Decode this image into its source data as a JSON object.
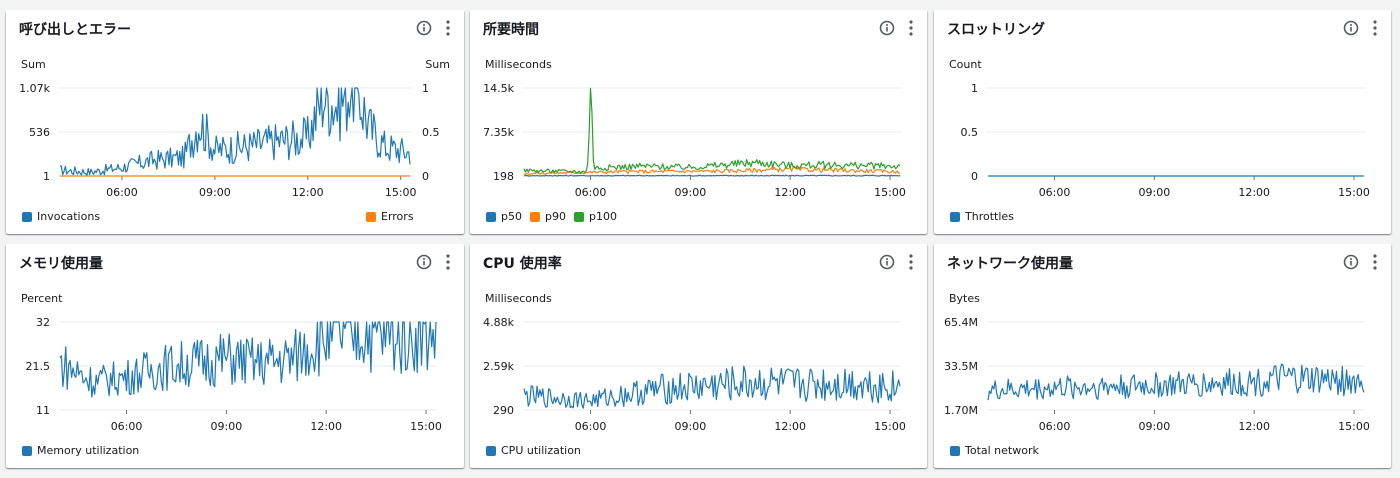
{
  "colors": {
    "blue": "#1f77b4",
    "orange": "#ff7f0e",
    "green": "#2ca02c",
    "axis": "#687078",
    "grid": "#e9ebed"
  },
  "icons": {
    "info": "info-circle-icon",
    "more": "vertical-ellipsis-icon"
  },
  "panels": [
    {
      "title": "呼び出しとエラー",
      "legend": [
        "Invocations",
        "Errors"
      ]
    },
    {
      "title": "所要時間",
      "legend": [
        "p50",
        "p90",
        "p100"
      ]
    },
    {
      "title": "スロットリング",
      "legend": [
        "Throttles"
      ]
    },
    {
      "title": "メモリ使用量",
      "legend": [
        "Memory utilization"
      ]
    },
    {
      "title": "CPU 使用率",
      "legend": [
        "CPU utilization"
      ]
    },
    {
      "title": "ネットワーク使用量",
      "legend": [
        "Total network"
      ]
    }
  ],
  "chart_data": [
    {
      "type": "line",
      "title": "呼び出しとエラー",
      "ylabel": "Sum",
      "y2label": "Sum",
      "yticks": [
        "1.07k",
        "536",
        "1"
      ],
      "y2ticks": [
        "1",
        "0.5",
        "0"
      ],
      "ylim": [
        1,
        1070
      ],
      "y2lim": [
        0,
        1
      ],
      "xticks": [
        "06:00",
        "09:00",
        "12:00",
        "15:00"
      ],
      "xrange_hours": [
        4.0,
        15.3
      ],
      "series": [
        {
          "name": "Invocations",
          "axis": "left",
          "color": "#1f77b4",
          "anchors": [
            [
              4.0,
              60
            ],
            [
              5.0,
              40
            ],
            [
              6.0,
              90
            ],
            [
              7.0,
              170
            ],
            [
              8.0,
              200
            ],
            [
              8.5,
              600
            ],
            [
              9.0,
              280
            ],
            [
              10.0,
              320
            ],
            [
              11.0,
              380
            ],
            [
              12.0,
              420
            ],
            [
              12.5,
              900
            ],
            [
              13.0,
              760
            ],
            [
              13.5,
              1070
            ],
            [
              14.0,
              520
            ],
            [
              14.5,
              320
            ],
            [
              15.3,
              250
            ]
          ]
        },
        {
          "name": "Errors",
          "axis": "right",
          "color": "#ff7f0e",
          "anchors": [
            [
              4.0,
              0
            ],
            [
              15.3,
              0
            ]
          ]
        }
      ]
    },
    {
      "type": "line",
      "title": "所要時間",
      "ylabel": "Milliseconds",
      "yticks": [
        "14.5k",
        "7.35k",
        "198"
      ],
      "ylim": [
        198,
        14500
      ],
      "xticks": [
        "06:00",
        "09:00",
        "12:00",
        "15:00"
      ],
      "xrange_hours": [
        4.0,
        15.3
      ],
      "series": [
        {
          "name": "p50",
          "color": "#1f77b4",
          "anchors": [
            [
              4.0,
              250
            ],
            [
              15.3,
              260
            ]
          ]
        },
        {
          "name": "p90",
          "color": "#ff7f0e",
          "anchors": [
            [
              4.0,
              600
            ],
            [
              7.0,
              900
            ],
            [
              10.0,
              1000
            ],
            [
              12.0,
              1300
            ],
            [
              15.3,
              900
            ]
          ]
        },
        {
          "name": "p100",
          "color": "#2ca02c",
          "anchors": [
            [
              4.0,
              1100
            ],
            [
              5.9,
              900
            ],
            [
              6.0,
              14500
            ],
            [
              6.1,
              1500
            ],
            [
              7.5,
              1800
            ],
            [
              9.0,
              1600
            ],
            [
              11.0,
              2400
            ],
            [
              12.0,
              1900
            ],
            [
              13.0,
              2000
            ],
            [
              15.3,
              1800
            ]
          ]
        }
      ]
    },
    {
      "type": "line",
      "title": "スロットリング",
      "ylabel": "Count",
      "yticks": [
        "1",
        "0.5",
        "0"
      ],
      "ylim": [
        0,
        1
      ],
      "xticks": [
        "06:00",
        "09:00",
        "12:00",
        "15:00"
      ],
      "xrange_hours": [
        4.0,
        15.3
      ],
      "series": [
        {
          "name": "Throttles",
          "color": "#1f77b4",
          "anchors": [
            [
              4.0,
              0
            ],
            [
              15.3,
              0
            ]
          ]
        }
      ]
    },
    {
      "type": "line",
      "title": "メモリ使用量",
      "ylabel": "Percent",
      "yticks": [
        "32",
        "21.5",
        "11"
      ],
      "ylim": [
        11,
        32
      ],
      "xticks": [
        "06:00",
        "09:00",
        "12:00",
        "15:00"
      ],
      "xrange_hours": [
        4.0,
        15.3
      ],
      "series": [
        {
          "name": "Memory utilization",
          "color": "#1f77b4",
          "anchors": [
            [
              4.0,
              21
            ],
            [
              5.0,
              17
            ],
            [
              6.0,
              18
            ],
            [
              7.0,
              20
            ],
            [
              8.0,
              21
            ],
            [
              9.0,
              22
            ],
            [
              10.0,
              21
            ],
            [
              11.0,
              22
            ],
            [
              11.5,
              25
            ],
            [
              12.0,
              27
            ],
            [
              13.0,
              28
            ],
            [
              14.0,
              27
            ],
            [
              15.3,
              28
            ]
          ]
        }
      ]
    },
    {
      "type": "line",
      "title": "CPU 使用率",
      "ylabel": "Milliseconds",
      "yticks": [
        "4.88k",
        "2.59k",
        "290"
      ],
      "ylim": [
        290,
        4880
      ],
      "xticks": [
        "06:00",
        "09:00",
        "12:00",
        "15:00"
      ],
      "xrange_hours": [
        4.0,
        15.3
      ],
      "series": [
        {
          "name": "CPU utilization",
          "color": "#1f77b4",
          "anchors": [
            [
              4.0,
              900
            ],
            [
              6.0,
              700
            ],
            [
              8.0,
              1200
            ],
            [
              10.0,
              1400
            ],
            [
              11.0,
              1500
            ],
            [
              12.0,
              1400
            ],
            [
              14.0,
              1500
            ],
            [
              15.3,
              1300
            ]
          ]
        }
      ]
    },
    {
      "type": "line",
      "title": "ネットワーク使用量",
      "ylabel": "Bytes",
      "yticks": [
        "65.4M",
        "33.5M",
        "1.70M"
      ],
      "ylim": [
        1.7,
        65.4
      ],
      "xticks": [
        "06:00",
        "09:00",
        "12:00",
        "15:00"
      ],
      "xrange_hours": [
        4.0,
        15.3
      ],
      "series": [
        {
          "name": "Total network",
          "color": "#1f77b4",
          "anchors": [
            [
              4.0,
              14
            ],
            [
              6.0,
              16
            ],
            [
              8.0,
              17
            ],
            [
              10.0,
              18
            ],
            [
              12.0,
              20
            ],
            [
              13.0,
              22
            ],
            [
              15.3,
              20
            ]
          ]
        }
      ]
    }
  ]
}
